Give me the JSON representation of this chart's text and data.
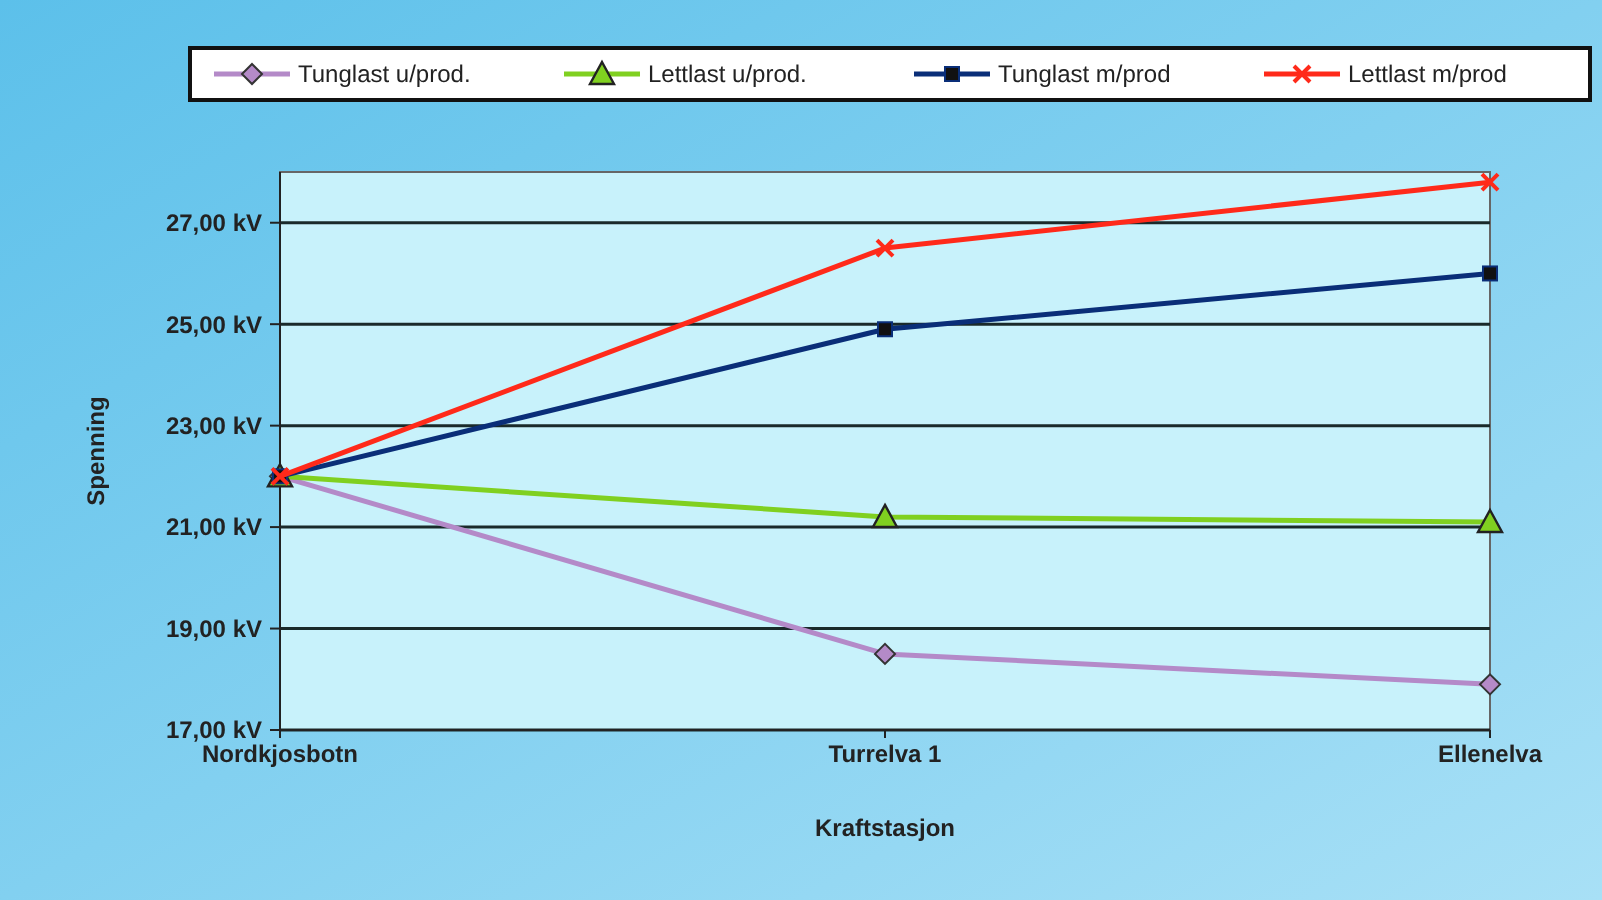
{
  "chart_data": {
    "type": "line",
    "xlabel": "Kraftstasjon",
    "ylabel": "Spenning",
    "categories": [
      "Nordkjosbotn",
      "Turrelva 1",
      "Ellenelva"
    ],
    "series": [
      {
        "name": "Tunglast u/prod.",
        "color": "#b48ac8",
        "marker": "diamond",
        "values": [
          22.0,
          18.5,
          17.9
        ]
      },
      {
        "name": "Lettlast u/prod.",
        "color": "#80d020",
        "marker": "triangle",
        "values": [
          22.0,
          21.2,
          21.1
        ]
      },
      {
        "name": "Tunglast m/prod",
        "color": "#0a2e78",
        "marker": "square",
        "values": [
          22.0,
          24.9,
          26.0
        ]
      },
      {
        "name": "Lettlast m/prod",
        "color": "#ff2a1a",
        "marker": "cross",
        "values": [
          22.0,
          26.5,
          27.8
        ]
      }
    ],
    "ylim": [
      17,
      28
    ],
    "yticks": [
      {
        "value": 17,
        "label": "17,00 kV"
      },
      {
        "value": 19,
        "label": "19,00 kV"
      },
      {
        "value": 21,
        "label": "21,00 kV"
      },
      {
        "value": 23,
        "label": "23,00 kV"
      },
      {
        "value": 25,
        "label": "25,00 kV"
      },
      {
        "value": 27,
        "label": "27,00 kV"
      }
    ],
    "grid": "y",
    "legend": "top"
  }
}
